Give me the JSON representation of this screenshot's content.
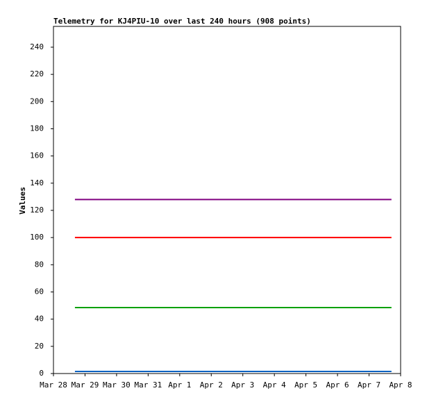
{
  "chart_data": {
    "type": "line",
    "title": "Telemetry for KJ4PIU-10 over last 240 hours (908 points)",
    "y_label": "Values",
    "x": [
      0.68,
      10.71
    ],
    "series": [
      {
        "color": "#800080",
        "values": [
          128,
          128
        ]
      },
      {
        "color": "#ff0000",
        "values": [
          100,
          100
        ]
      },
      {
        "color": "#00a000",
        "values": [
          48.5,
          48.5
        ]
      },
      {
        "color": "#0060c0",
        "values": [
          1.5,
          1.5
        ]
      }
    ],
    "xlim": [
      0,
      11
    ],
    "xticks": [
      {
        "value": 0,
        "label": "Mar 28"
      },
      {
        "value": 1,
        "label": "Mar 29"
      },
      {
        "value": 2,
        "label": "Mar 30"
      },
      {
        "value": 3,
        "label": "Mar 31"
      },
      {
        "value": 4,
        "label": "Apr 1"
      },
      {
        "value": 5,
        "label": "Apr 2"
      },
      {
        "value": 6,
        "label": "Apr 3"
      },
      {
        "value": 7,
        "label": "Apr 4"
      },
      {
        "value": 8,
        "label": "Apr 5"
      },
      {
        "value": 9,
        "label": "Apr 6"
      },
      {
        "value": 10,
        "label": "Apr 7"
      },
      {
        "value": 11,
        "label": "Apr 8"
      }
    ],
    "ylim": [
      0,
      255.3
    ],
    "yticks": [
      0,
      20,
      40,
      60,
      80,
      100,
      120,
      140,
      160,
      180,
      200,
      220,
      240
    ],
    "grid": false
  }
}
